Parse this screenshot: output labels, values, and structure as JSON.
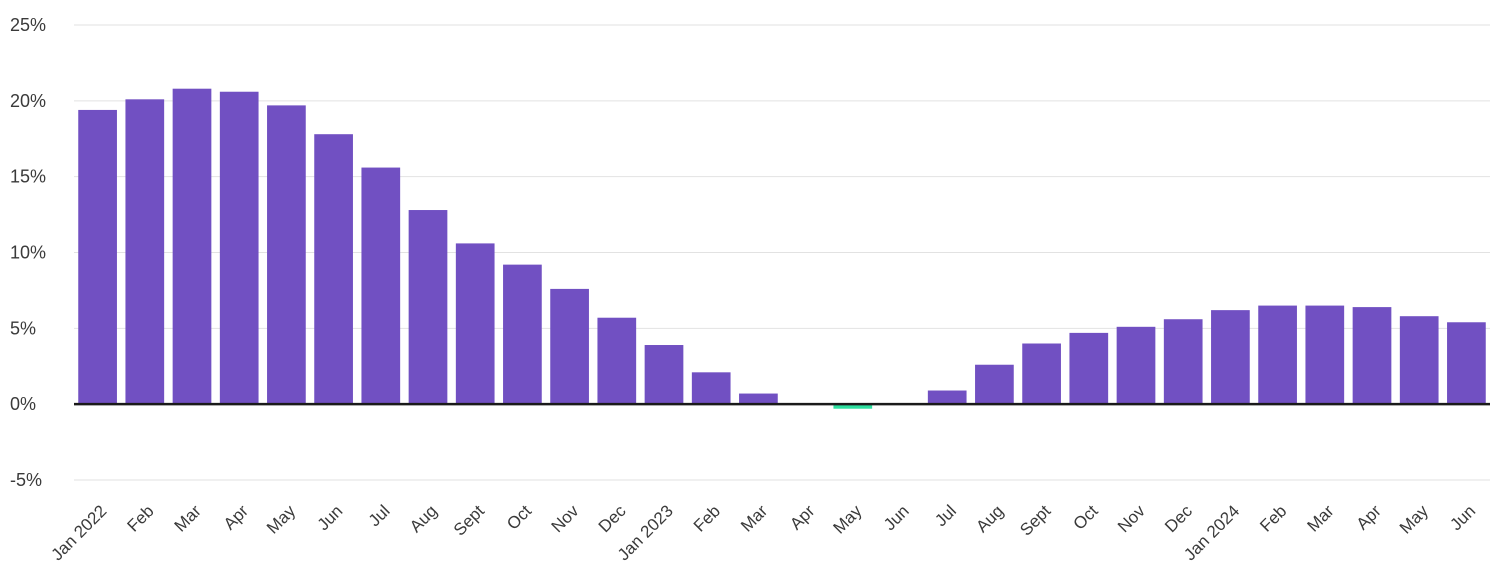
{
  "chart_data": {
    "type": "bar",
    "title": "",
    "xlabel": "",
    "ylabel": "",
    "ylim": [
      -5,
      25
    ],
    "yticks": [
      25,
      20,
      15,
      10,
      5,
      0,
      -5
    ],
    "ytick_labels": [
      "25%",
      "20%",
      "15%",
      "10%",
      "5%",
      "0%",
      "-5%"
    ],
    "grid": true,
    "legend": "none",
    "categories": [
      "Jan 2022",
      "Feb",
      "Mar",
      "Apr",
      "May",
      "Jun",
      "Jul",
      "Aug",
      "Sept",
      "Oct",
      "Nov",
      "Dec",
      "Jan 2023",
      "Feb",
      "Mar",
      "Apr",
      "May",
      "Jun",
      "Jul",
      "Aug",
      "Sept",
      "Oct",
      "Nov",
      "Dec",
      "Jan 2024",
      "Feb",
      "Mar",
      "Apr",
      "May",
      "Jun"
    ],
    "values": [
      19.4,
      20.1,
      20.8,
      20.6,
      19.7,
      17.8,
      15.6,
      12.8,
      10.6,
      9.2,
      7.6,
      5.7,
      3.9,
      2.1,
      0.7,
      0.0,
      -0.3,
      0.0,
      0.9,
      2.6,
      4.0,
      4.7,
      5.1,
      5.6,
      6.2,
      6.5,
      6.5,
      6.4,
      5.8,
      5.4
    ],
    "colors": {
      "positive": "#7150c2",
      "negative": "#2ee0a0",
      "grid": "#e2e2e2",
      "zero_line": "#1a1a1a"
    }
  }
}
